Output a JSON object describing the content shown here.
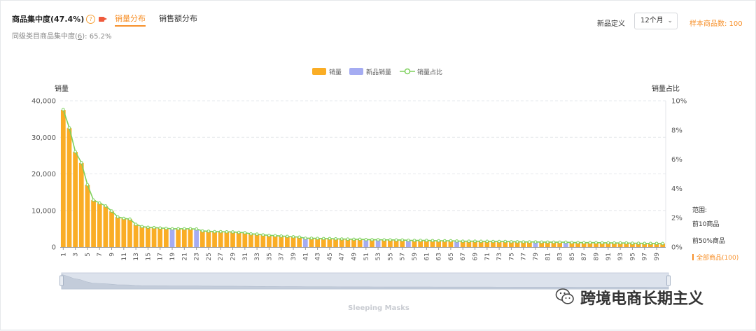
{
  "header": {
    "title": "商品集中度(47.4%)",
    "tabs": [
      {
        "label": "销量分布",
        "active": true
      },
      {
        "label": "销售额分布",
        "active": false
      }
    ],
    "peer_label": "同级类目商品集中度(",
    "peer_num": "6",
    "peer_value": "): 65.2%",
    "new_def_label": "新品定义",
    "period_value": "12个月",
    "sample_label": "样本商品数: 100"
  },
  "range_panel": {
    "title": "范围:",
    "options": [
      {
        "label": "前10商品",
        "active": false
      },
      {
        "label": "前50%商品",
        "active": false
      },
      {
        "label": "全部商品(100)",
        "active": true
      }
    ]
  },
  "watermark": "跨境电商长期主义",
  "slider_caption": "Sleeping Masks",
  "colors": {
    "sales": "#faad25",
    "new_sales": "#a5acf2",
    "share_line": "#7ed15d",
    "accent": "#f7902a"
  },
  "chart_data": {
    "type": "bar",
    "legend": [
      "销量",
      "新品销量",
      "销量占比"
    ],
    "legend_placement": "top-center",
    "ylabel": "销量",
    "y2label": "销量占比",
    "ylim": [
      0,
      40000
    ],
    "y2lim": [
      0,
      10
    ],
    "yticks": [
      "0",
      "10,000",
      "20,000",
      "30,000",
      "40,000"
    ],
    "y2ticks": [
      "0%",
      "2%",
      "4%",
      "6%",
      "8%",
      "10%"
    ],
    "grid": true,
    "x": [
      1,
      2,
      3,
      4,
      5,
      6,
      7,
      8,
      9,
      10,
      11,
      12,
      13,
      14,
      15,
      16,
      17,
      18,
      19,
      20,
      21,
      22,
      23,
      24,
      25,
      26,
      27,
      28,
      29,
      30,
      31,
      32,
      33,
      34,
      35,
      36,
      37,
      38,
      39,
      40,
      41,
      42,
      43,
      44,
      45,
      46,
      47,
      48,
      49,
      50,
      51,
      52,
      53,
      54,
      55,
      56,
      57,
      58,
      59,
      60,
      61,
      62,
      63,
      64,
      65,
      66,
      67,
      68,
      69,
      70,
      71,
      72,
      73,
      74,
      75,
      76,
      77,
      78,
      79,
      80,
      81,
      82,
      83,
      84,
      85,
      86,
      87,
      88,
      89,
      90,
      91,
      92,
      93,
      94,
      95,
      96,
      97,
      98,
      99,
      100
    ],
    "xticks": [
      "1",
      "3",
      "5",
      "7",
      "9",
      "11",
      "13",
      "15",
      "17",
      "19",
      "21",
      "23",
      "25",
      "27",
      "29",
      "31",
      "33",
      "35",
      "37",
      "39",
      "41",
      "43",
      "45",
      "47",
      "49",
      "51",
      "53",
      "55",
      "57",
      "59",
      "61",
      "63",
      "65",
      "67",
      "69",
      "71",
      "73",
      "75",
      "77",
      "79",
      "81",
      "83",
      "85",
      "87",
      "89",
      "91",
      "93",
      "95",
      "97",
      "99"
    ],
    "values": [
      37500,
      32500,
      26000,
      23000,
      17000,
      12800,
      12000,
      11200,
      9800,
      8200,
      7800,
      7600,
      6200,
      5600,
      5400,
      5300,
      5200,
      5100,
      5000,
      5000,
      5000,
      5000,
      4900,
      4400,
      4300,
      4200,
      4200,
      4150,
      4100,
      4000,
      3900,
      3600,
      3500,
      3300,
      3200,
      3100,
      3000,
      2900,
      2800,
      2700,
      2400,
      2400,
      2350,
      2300,
      2300,
      2250,
      2200,
      2150,
      2100,
      2100,
      2050,
      2000,
      2000,
      1950,
      1950,
      1900,
      1900,
      1850,
      1800,
      1800,
      1800,
      1750,
      1700,
      1700,
      1700,
      1650,
      1600,
      1600,
      1600,
      1550,
      1550,
      1500,
      1500,
      1500,
      1450,
      1450,
      1400,
      1400,
      1400,
      1350,
      1350,
      1300,
      1300,
      1300,
      1250,
      1250,
      1200,
      1200,
      1200,
      1150,
      1150,
      1100,
      1100,
      1100,
      1050,
      1050,
      1000,
      1000,
      1000,
      950
    ],
    "new_sales_ranks": [
      19,
      23,
      41,
      51,
      53,
      58,
      66,
      79,
      84
    ],
    "share_percent": [
      9.4,
      8.15,
      6.52,
      5.77,
      4.26,
      3.21,
      3.01,
      2.81,
      2.46,
      2.06,
      1.96,
      1.91,
      1.55,
      1.4,
      1.35,
      1.33,
      1.3,
      1.28,
      1.25,
      1.25,
      1.25,
      1.25,
      1.23,
      1.1,
      1.08,
      1.05,
      1.05,
      1.04,
      1.03,
      1.0,
      0.98,
      0.9,
      0.88,
      0.83,
      0.8,
      0.78,
      0.75,
      0.73,
      0.7,
      0.68,
      0.6,
      0.6,
      0.59,
      0.58,
      0.58,
      0.56,
      0.55,
      0.54,
      0.53,
      0.53,
      0.51,
      0.5,
      0.5,
      0.49,
      0.49,
      0.48,
      0.48,
      0.46,
      0.45,
      0.45,
      0.45,
      0.44,
      0.43,
      0.43,
      0.43,
      0.41,
      0.4,
      0.4,
      0.4,
      0.39,
      0.39,
      0.38,
      0.38,
      0.38,
      0.36,
      0.36,
      0.35,
      0.35,
      0.35,
      0.34,
      0.34,
      0.33,
      0.33,
      0.33,
      0.31,
      0.31,
      0.3,
      0.3,
      0.3,
      0.29,
      0.29,
      0.28,
      0.28,
      0.28,
      0.26,
      0.26,
      0.25,
      0.25,
      0.25,
      0.24
    ]
  }
}
